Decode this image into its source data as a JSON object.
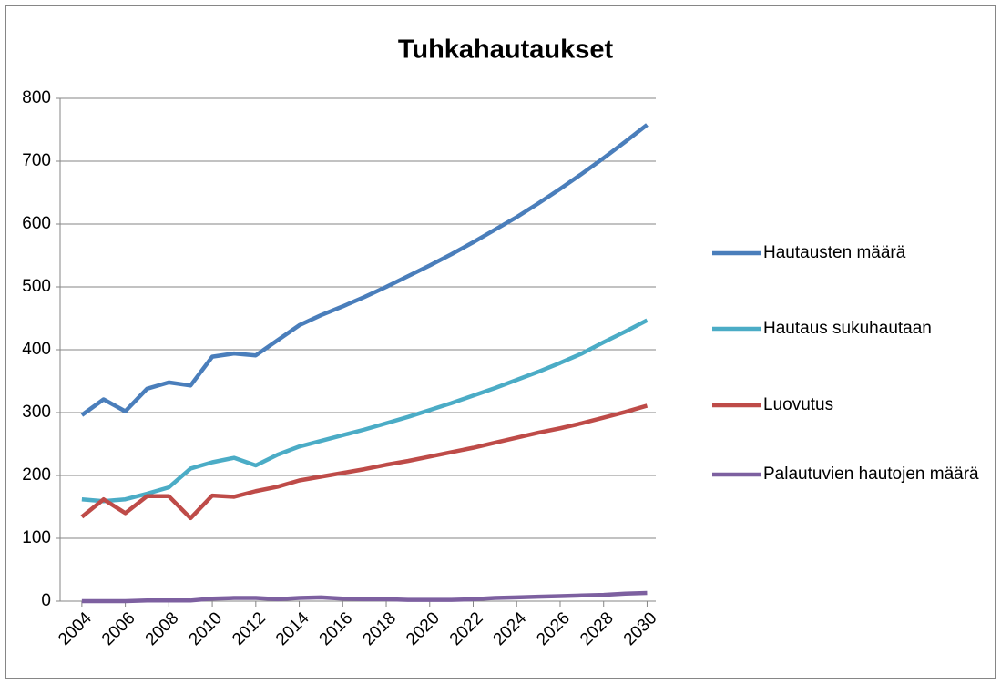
{
  "chart_data": {
    "type": "line",
    "title": "Tuhkahautaukset",
    "x": [
      2004,
      2005,
      2006,
      2007,
      2008,
      2009,
      2010,
      2011,
      2012,
      2013,
      2014,
      2015,
      2016,
      2017,
      2018,
      2019,
      2020,
      2021,
      2022,
      2023,
      2024,
      2025,
      2026,
      2027,
      2028,
      2029,
      2030
    ],
    "series": [
      {
        "name": "Hautausten määrä",
        "color": "#4a7ebb",
        "values": [
          296,
          321,
          302,
          338,
          348,
          343,
          389,
          394,
          391,
          415,
          439,
          455,
          469,
          484,
          500,
          517,
          534,
          552,
          571,
          591,
          611,
          633,
          656,
          680,
          705,
          731,
          758
        ]
      },
      {
        "name": "Hautaus sukuhautaan",
        "color": "#4bacc6",
        "values": [
          162,
          159,
          162,
          171,
          181,
          211,
          221,
          228,
          216,
          233,
          246,
          255,
          264,
          273,
          283,
          293,
          304,
          315,
          327,
          339,
          352,
          365,
          379,
          394,
          412,
          429,
          447
        ]
      },
      {
        "name": "Luovutus",
        "color": "#be4b48",
        "values": [
          134,
          162,
          140,
          167,
          167,
          132,
          168,
          166,
          175,
          182,
          192,
          198,
          204,
          210,
          217,
          223,
          230,
          237,
          244,
          252,
          260,
          268,
          275,
          283,
          292,
          301,
          311
        ]
      },
      {
        "name": "Palautuvien hautojen määrä",
        "color": "#7d60a0",
        "values": [
          0,
          0,
          0,
          1,
          1,
          1,
          4,
          5,
          5,
          3,
          5,
          6,
          4,
          3,
          3,
          2,
          2,
          2,
          3,
          5,
          6,
          7,
          8,
          9,
          10,
          12,
          13
        ]
      }
    ],
    "xlim": [
      2003,
      2030.4
    ],
    "xticks": [
      2004,
      2006,
      2008,
      2010,
      2012,
      2014,
      2016,
      2018,
      2020,
      2022,
      2024,
      2026,
      2028,
      2030
    ],
    "ylim": [
      0,
      800
    ],
    "yticks": [
      0,
      100,
      200,
      300,
      400,
      500,
      600,
      700,
      800
    ],
    "grid": true,
    "legend": "right"
  }
}
